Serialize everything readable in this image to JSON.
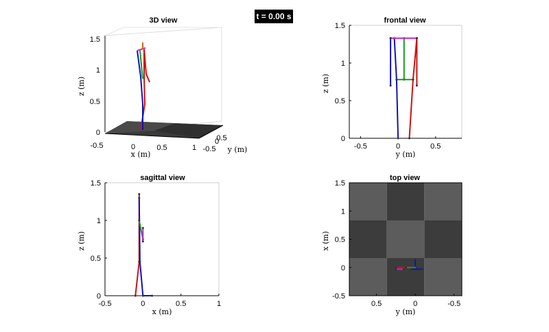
{
  "time_label": "t = 0.00 s",
  "colors": {
    "red": "#cc1111",
    "green": "#1a9a1a",
    "blue": "#1111bb",
    "magenta": "#cc22cc",
    "floor_dark": "#3c3c3c",
    "floor_light": "#5c5c5c"
  },
  "chart_data": [
    {
      "id": "view3d",
      "type": "line",
      "title": "3D view",
      "xlabel": "x (m)",
      "ylabel": "y (m)",
      "zlabel": "z (m)",
      "x_ticks": [
        "-0.5",
        "0",
        "0.5",
        "1"
      ],
      "y_ticks": [
        "-0.5",
        "0",
        "0.5"
      ],
      "z_ticks": [
        "0",
        "0.5",
        "1",
        "1.5"
      ]
    },
    {
      "id": "frontal",
      "type": "line",
      "title": "frontal view",
      "xlabel": "y (m)",
      "ylabel": "z (m)",
      "xlim": [
        -0.65,
        0.85
      ],
      "ylim": [
        0,
        1.5
      ],
      "x_ticks": [
        -0.5,
        0,
        0.5
      ],
      "y_ticks": [
        0,
        0.5,
        1,
        1.5
      ],
      "series": [
        {
          "color": "red",
          "x": [
            0.15,
            0.2,
            0.25
          ],
          "y": [
            0.0,
            0.78,
            1.33
          ]
        },
        {
          "color": "red",
          "x": [
            0.25,
            0.25
          ],
          "y": [
            1.33,
            0.7
          ]
        },
        {
          "color": "blue",
          "x": [
            0.0,
            -0.02,
            -0.05
          ],
          "y": [
            0.0,
            0.78,
            1.33
          ]
        },
        {
          "color": "blue",
          "x": [
            -0.1,
            -0.1
          ],
          "y": [
            1.33,
            0.7
          ]
        },
        {
          "color": "green",
          "x": [
            0.08,
            0.08
          ],
          "y": [
            0.78,
            1.33
          ]
        },
        {
          "color": "magenta",
          "x": [
            -0.1,
            0.25
          ],
          "y": [
            1.33,
            1.33
          ]
        },
        {
          "color": "green",
          "x": [
            -0.02,
            0.2
          ],
          "y": [
            0.78,
            0.78
          ]
        }
      ]
    },
    {
      "id": "sagittal",
      "type": "line",
      "title": "sagittal view",
      "xlabel": "x (m)",
      "ylabel": "z (m)",
      "xlim": [
        -0.5,
        1
      ],
      "ylim": [
        0,
        1.5
      ],
      "x_ticks": [
        -0.5,
        0,
        0.5,
        1
      ],
      "y_ticks": [
        0,
        0.5,
        1,
        1.5
      ],
      "series": [
        {
          "color": "red",
          "x": [
            -0.1,
            -0.05,
            -0.05
          ],
          "y": [
            0.0,
            0.45,
            1.35
          ]
        },
        {
          "color": "blue",
          "x": [
            0.0,
            -0.04,
            -0.05
          ],
          "y": [
            0.0,
            0.45,
            1.3
          ]
        },
        {
          "color": "green",
          "x": [
            -0.05,
            0.0
          ],
          "y": [
            1.0,
            0.75
          ]
        },
        {
          "color": "magenta",
          "x": [
            0.0,
            0.0
          ],
          "y": [
            0.9,
            0.72
          ]
        },
        {
          "color": "blue",
          "x": [
            0.0,
            0.12
          ],
          "y": [
            0.0,
            0.0
          ]
        }
      ]
    },
    {
      "id": "top",
      "type": "heatmap",
      "title": "top view",
      "xlabel": "y (m)",
      "ylabel": "x (m)",
      "xlim": [
        0.85,
        -0.6
      ],
      "ylim": [
        -0.5,
        1.5
      ],
      "x_ticks": [
        0.5,
        0,
        -0.5
      ],
      "y_ticks": [
        -0.5,
        0,
        0.5,
        1,
        1.5
      ],
      "series": [
        {
          "color": "red",
          "x": [
            0.25,
            0.05
          ],
          "y": [
            0.0,
            0.0
          ]
        },
        {
          "color": "blue",
          "x": [
            0.05,
            -0.1
          ],
          "y": [
            -0.03,
            -0.03
          ]
        },
        {
          "color": "blue",
          "x": [
            0.0,
            0.0
          ],
          "y": [
            0.0,
            0.15
          ]
        },
        {
          "color": "green",
          "x": [
            0.12,
            -0.02
          ],
          "y": [
            0.0,
            0.0
          ]
        },
        {
          "color": "magenta",
          "x": [
            0.25,
            0.15
          ],
          "y": [
            -0.03,
            -0.03
          ]
        }
      ]
    }
  ]
}
